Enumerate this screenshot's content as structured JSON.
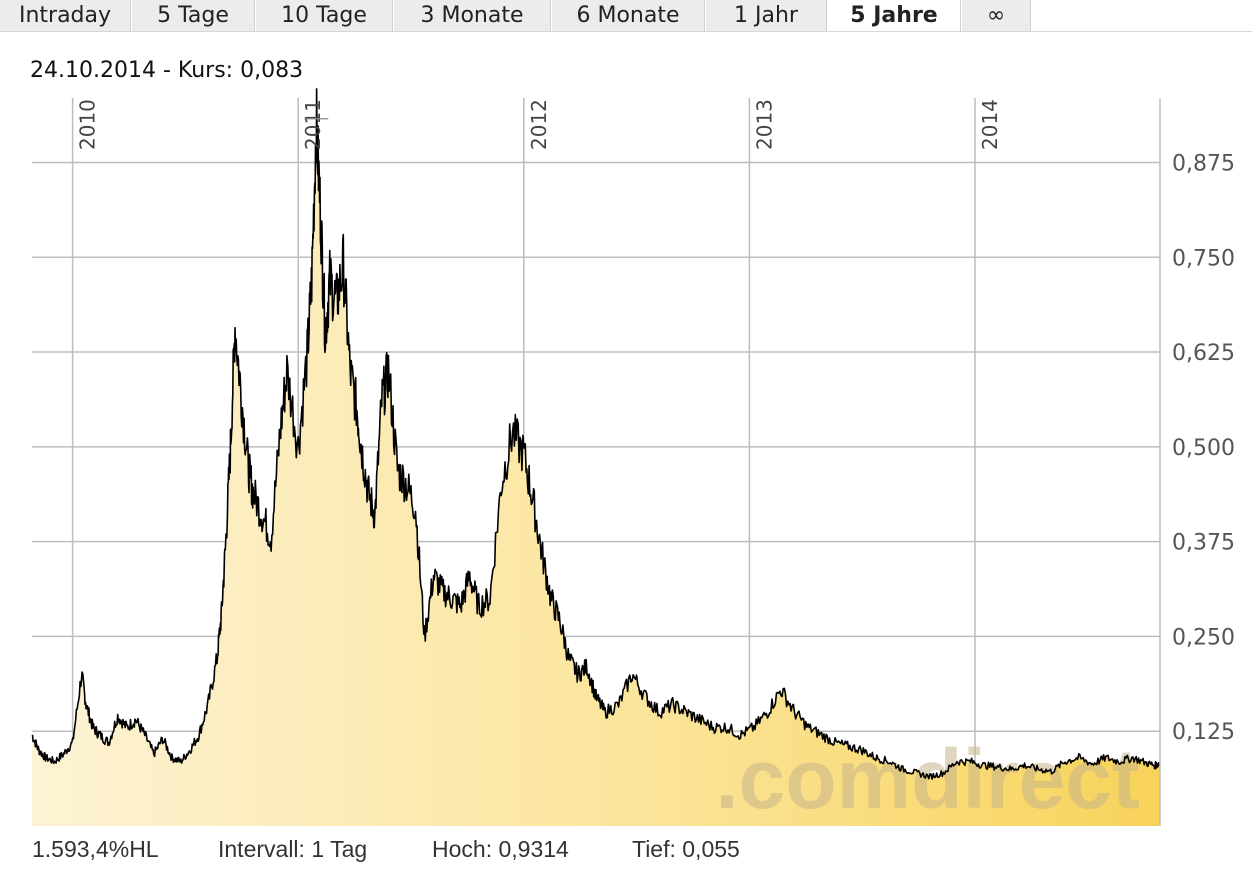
{
  "tabs": [
    {
      "label": "Intraday",
      "active": false
    },
    {
      "label": "5 Tage",
      "active": false
    },
    {
      "label": "10 Tage",
      "active": false
    },
    {
      "label": "3 Monate",
      "active": false
    },
    {
      "label": "6 Monate",
      "active": false
    },
    {
      "label": "1 Jahr",
      "active": false
    },
    {
      "label": "5 Jahre",
      "active": true
    },
    {
      "label": "∞",
      "active": false
    }
  ],
  "header": {
    "date": "24.10.2014",
    "kurs_text": " - Kurs: 0,083"
  },
  "watermark": ".comdirect",
  "footer": {
    "hl": "1.593,4%HL",
    "intervall": "Intervall: 1 Tag",
    "hoch": "Hoch: 0,9314",
    "tief": "Tief:  0,055"
  },
  "colors": {
    "line": "#000000",
    "fill_light": "#fdf3d4",
    "fill_dark": "#f8d35a",
    "grid": "#bdbdbd"
  },
  "chart_data": {
    "type": "area",
    "x_ticks": [
      "2010",
      "2011",
      "2012",
      "2013",
      "2014"
    ],
    "y_ticks": [
      "0,125",
      "0,250",
      "0,375",
      "0,500",
      "0,625",
      "0,750",
      "0,875"
    ],
    "y_tick_values": [
      0.125,
      0.25,
      0.375,
      0.5,
      0.625,
      0.75,
      0.875
    ],
    "ylim": [
      0.0,
      0.96
    ],
    "xlim": [
      2009.82,
      2014.82
    ],
    "grid": true,
    "series": [
      {
        "x": [
          2009.82,
          2009.85,
          2009.88,
          2009.92,
          2009.96,
          2010.0,
          2010.04,
          2010.06,
          2010.09,
          2010.12,
          2010.16,
          2010.2,
          2010.24,
          2010.28,
          2010.32,
          2010.36,
          2010.4,
          2010.44,
          2010.48,
          2010.52,
          2010.56,
          2010.6,
          2010.64,
          2010.66,
          2010.68,
          2010.7,
          2010.72,
          2010.75,
          2010.78,
          2010.8,
          2010.84,
          2010.88,
          2010.92,
          2010.95,
          2011.0,
          2011.04,
          2011.06,
          2011.08,
          2011.1,
          2011.12,
          2011.14,
          2011.17,
          2011.2,
          2011.23,
          2011.26,
          2011.28,
          2011.31,
          2011.34,
          2011.37,
          2011.4,
          2011.44,
          2011.48,
          2011.52,
          2011.56,
          2011.6,
          2011.64,
          2011.68,
          2011.72,
          2011.76,
          2011.8,
          2011.85,
          2011.9,
          2011.95,
          2012.0,
          2012.04,
          2012.08,
          2012.12,
          2012.16,
          2012.2,
          2012.24,
          2012.28,
          2012.32,
          2012.36,
          2012.42,
          2012.48,
          2012.54,
          2012.6,
          2012.66,
          2012.72,
          2012.78,
          2012.84,
          2012.9,
          2012.96,
          2013.02,
          2013.08,
          2013.14,
          2013.2,
          2013.26,
          2013.32,
          2013.38,
          2013.44,
          2013.5,
          2013.56,
          2013.62,
          2013.68,
          2013.74,
          2013.8,
          2013.86,
          2013.92,
          2013.98,
          2014.04,
          2014.1,
          2014.16,
          2014.22,
          2014.28,
          2014.34,
          2014.4,
          2014.46,
          2014.52,
          2014.58,
          2014.64,
          2014.7,
          2014.76,
          2014.8,
          2014.82
        ],
        "y": [
          0.12,
          0.1,
          0.09,
          0.085,
          0.095,
          0.11,
          0.2,
          0.16,
          0.13,
          0.12,
          0.11,
          0.145,
          0.13,
          0.14,
          0.12,
          0.095,
          0.115,
          0.09,
          0.085,
          0.1,
          0.12,
          0.16,
          0.22,
          0.28,
          0.38,
          0.5,
          0.66,
          0.56,
          0.47,
          0.44,
          0.41,
          0.38,
          0.52,
          0.6,
          0.5,
          0.62,
          0.72,
          0.93,
          0.8,
          0.65,
          0.72,
          0.69,
          0.74,
          0.6,
          0.55,
          0.5,
          0.44,
          0.41,
          0.56,
          0.6,
          0.47,
          0.45,
          0.42,
          0.25,
          0.33,
          0.31,
          0.3,
          0.29,
          0.33,
          0.29,
          0.3,
          0.45,
          0.52,
          0.49,
          0.43,
          0.36,
          0.3,
          0.27,
          0.22,
          0.2,
          0.21,
          0.17,
          0.15,
          0.16,
          0.2,
          0.17,
          0.15,
          0.16,
          0.15,
          0.14,
          0.13,
          0.13,
          0.12,
          0.13,
          0.15,
          0.18,
          0.15,
          0.13,
          0.12,
          0.11,
          0.105,
          0.1,
          0.09,
          0.085,
          0.075,
          0.07,
          0.065,
          0.07,
          0.085,
          0.085,
          0.08,
          0.078,
          0.075,
          0.08,
          0.075,
          0.072,
          0.085,
          0.09,
          0.082,
          0.09,
          0.085,
          0.09,
          0.083,
          0.08,
          0.083
        ]
      }
    ]
  }
}
